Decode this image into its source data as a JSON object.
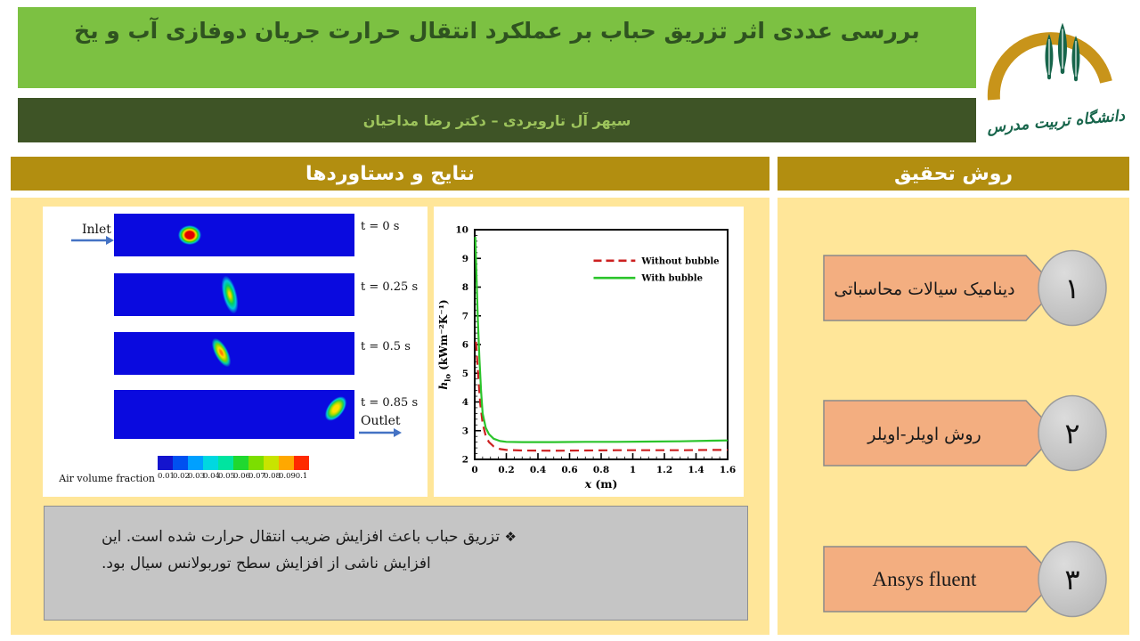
{
  "page": {
    "title": "بررسی عددی اثر تزریق حباب بر عملکرد انتقال حرارت جریان دوفازی آب و یخ",
    "authors": "سپهر آل تارویردی – دکتر رضا مداحیان",
    "logo_caption": "دانشگاه تربیت مدرس"
  },
  "palette": {
    "title_bar_green": "#7CC142",
    "title_text_green": "#2F5320",
    "subtitle_bar_olive": "#3E5426",
    "subtitle_text": "#9DC45C",
    "panel_header_gold": "#B28E10",
    "panel_body_yellow": "#FFE699",
    "method_shape_orange": "#F3AE80",
    "note_box_gray": "#C5C5C5",
    "channel_blue": "#0A0ADF",
    "arrow_blue": "#4472C4",
    "logo_gold": "#C8941A",
    "logo_green": "#17654B"
  },
  "left_panel": {
    "header": "نتایج و دستاوردها",
    "simulation": {
      "inlet_label": "Inlet",
      "outlet_label": "Outlet",
      "frames": [
        {
          "time_label": "t = 0 s"
        },
        {
          "time_label": "t = 0.25 s"
        },
        {
          "time_label": "t = 0.5 s"
        },
        {
          "time_label": "t = 0.85 s"
        }
      ],
      "colorbar": {
        "label": "Air volume fraction",
        "tick_labels": [
          "0.01",
          "0.02",
          "0.03",
          "0.04",
          "0.05",
          "0.06",
          "0.07",
          "0.08",
          "0.09",
          "0.1"
        ],
        "cell_colors": [
          "#1414CE",
          "#0050F0",
          "#00A0FF",
          "#00D8E0",
          "#00E4A0",
          "#20D830",
          "#7CDE00",
          "#C8E400",
          "#FFA800",
          "#FF2A00"
        ]
      }
    },
    "note_bullet": "❖",
    "note": "تزریق حباب باعث افزایش ضریب انتقال حرارت شده است. این افزایش ناشی از افزایش سطح توربولانس سیال بود."
  },
  "right_panel": {
    "header": "روش تحقیق",
    "items": [
      {
        "label": "دینامیک سیالات محاسباتی",
        "number": "۱"
      },
      {
        "label": "روش اویلر-اویلر",
        "number": "۲"
      },
      {
        "label": "Ansys fluent",
        "number": "۳"
      }
    ]
  },
  "chart_data": {
    "type": "line",
    "xlabel": {
      "sym": "x",
      "unit": "(m)"
    },
    "ylabel": {
      "sym": "h",
      "sub": "lo",
      "unit": "(kWm⁻²K⁻¹)"
    },
    "xlim": [
      0,
      1.6
    ],
    "ylim": [
      2,
      10
    ],
    "x_ticks": [
      0,
      0.2,
      0.4,
      0.6,
      0.8,
      1,
      1.2,
      1.4,
      1.6
    ],
    "x_tick_labels": [
      "0",
      "0.2",
      "0.4",
      "0.6",
      "0.8",
      "1",
      "1.2",
      "1.4",
      "1.6"
    ],
    "y_ticks": [
      2,
      3,
      4,
      5,
      6,
      7,
      8,
      9,
      10
    ],
    "y_tick_labels": [
      "2",
      "3",
      "4",
      "5",
      "6",
      "7",
      "8",
      "9",
      "10"
    ],
    "grid": false,
    "legend_position": "upper right inside",
    "series": [
      {
        "name": "Without bubble",
        "color": "#CC2020",
        "dash": true,
        "points": [
          [
            0.008,
            6.1
          ],
          [
            0.015,
            5.5
          ],
          [
            0.025,
            4.7
          ],
          [
            0.035,
            3.95
          ],
          [
            0.05,
            3.25
          ],
          [
            0.07,
            2.82
          ],
          [
            0.09,
            2.6
          ],
          [
            0.12,
            2.45
          ],
          [
            0.16,
            2.36
          ],
          [
            0.2,
            2.33
          ],
          [
            0.3,
            2.31
          ],
          [
            0.5,
            2.3
          ],
          [
            0.7,
            2.31
          ],
          [
            0.9,
            2.32
          ],
          [
            1.1,
            2.32
          ],
          [
            1.3,
            2.32
          ],
          [
            1.5,
            2.33
          ],
          [
            1.6,
            2.33
          ]
        ]
      },
      {
        "name": "With bubble",
        "color": "#2BC42B",
        "dash": false,
        "points": [
          [
            0.004,
            9.75
          ],
          [
            0.01,
            8.6
          ],
          [
            0.02,
            6.9
          ],
          [
            0.03,
            5.5
          ],
          [
            0.04,
            4.4
          ],
          [
            0.05,
            3.6
          ],
          [
            0.07,
            3.1
          ],
          [
            0.09,
            2.88
          ],
          [
            0.12,
            2.72
          ],
          [
            0.16,
            2.64
          ],
          [
            0.2,
            2.61
          ],
          [
            0.3,
            2.6
          ],
          [
            0.5,
            2.6
          ],
          [
            0.7,
            2.61
          ],
          [
            0.9,
            2.61
          ],
          [
            1.1,
            2.62
          ],
          [
            1.3,
            2.63
          ],
          [
            1.5,
            2.65
          ],
          [
            1.6,
            2.66
          ]
        ]
      }
    ]
  }
}
